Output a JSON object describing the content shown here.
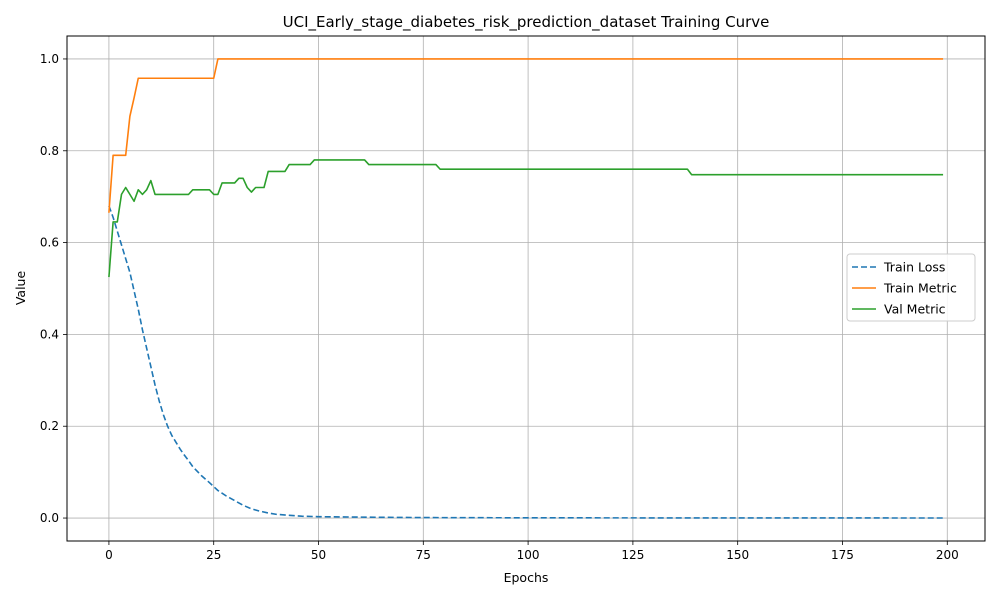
{
  "chart_data": {
    "type": "line",
    "title": "UCI_Early_stage_diabetes_risk_prediction_dataset Training Curve",
    "xlabel": "Epochs",
    "ylabel": "Value",
    "xlim": [
      -10,
      209
    ],
    "ylim": [
      -0.05,
      1.05
    ],
    "xticks": [
      0,
      25,
      50,
      75,
      100,
      125,
      150,
      175,
      200
    ],
    "yticks": [
      0.0,
      0.2,
      0.4,
      0.6,
      0.8,
      1.0
    ],
    "grid": true,
    "legend_position": "center-right",
    "series": [
      {
        "name": "Train Loss",
        "color": "#1f77b4",
        "dash": "dashed",
        "points": [
          [
            0,
            0.68
          ],
          [
            1,
            0.655
          ],
          [
            2,
            0.625
          ],
          [
            3,
            0.595
          ],
          [
            4,
            0.565
          ],
          [
            5,
            0.535
          ],
          [
            6,
            0.495
          ],
          [
            7,
            0.455
          ],
          [
            8,
            0.41
          ],
          [
            9,
            0.37
          ],
          [
            10,
            0.33
          ],
          [
            11,
            0.29
          ],
          [
            12,
            0.255
          ],
          [
            13,
            0.225
          ],
          [
            14,
            0.2
          ],
          [
            15,
            0.18
          ],
          [
            16,
            0.165
          ],
          [
            17,
            0.15
          ],
          [
            18,
            0.137
          ],
          [
            19,
            0.125
          ],
          [
            20,
            0.112
          ],
          [
            22,
            0.093
          ],
          [
            24,
            0.077
          ],
          [
            26,
            0.06
          ],
          [
            28,
            0.048
          ],
          [
            30,
            0.038
          ],
          [
            32,
            0.028
          ],
          [
            34,
            0.02
          ],
          [
            36,
            0.015
          ],
          [
            38,
            0.011
          ],
          [
            40,
            0.008
          ],
          [
            43,
            0.006
          ],
          [
            46,
            0.004
          ],
          [
            50,
            0.003
          ],
          [
            60,
            0.002
          ],
          [
            75,
            0.001
          ],
          [
            100,
            0.0005
          ],
          [
            150,
            0.0002
          ],
          [
            199,
            0.0001
          ]
        ]
      },
      {
        "name": "Train Metric",
        "color": "#ff7f0e",
        "dash": "solid",
        "points": [
          [
            0,
            0.665
          ],
          [
            1,
            0.79
          ],
          [
            2,
            0.79
          ],
          [
            3,
            0.79
          ],
          [
            4,
            0.79
          ],
          [
            5,
            0.875
          ],
          [
            6,
            0.915
          ],
          [
            7,
            0.958
          ],
          [
            8,
            0.958
          ],
          [
            15,
            0.958
          ],
          [
            20,
            0.958
          ],
          [
            25,
            0.958
          ],
          [
            26,
            1.0
          ],
          [
            50,
            1.0
          ],
          [
            100,
            1.0
          ],
          [
            150,
            1.0
          ],
          [
            199,
            1.0
          ]
        ]
      },
      {
        "name": "Val Metric",
        "color": "#2ca02c",
        "dash": "solid",
        "points": [
          [
            0,
            0.525
          ],
          [
            1,
            0.645
          ],
          [
            2,
            0.645
          ],
          [
            3,
            0.705
          ],
          [
            4,
            0.72
          ],
          [
            5,
            0.705
          ],
          [
            6,
            0.69
          ],
          [
            7,
            0.715
          ],
          [
            8,
            0.705
          ],
          [
            9,
            0.715
          ],
          [
            10,
            0.735
          ],
          [
            11,
            0.705
          ],
          [
            15,
            0.705
          ],
          [
            19,
            0.705
          ],
          [
            20,
            0.715
          ],
          [
            24,
            0.715
          ],
          [
            25,
            0.705
          ],
          [
            26,
            0.705
          ],
          [
            27,
            0.73
          ],
          [
            30,
            0.73
          ],
          [
            31,
            0.74
          ],
          [
            32,
            0.74
          ],
          [
            33,
            0.72
          ],
          [
            34,
            0.71
          ],
          [
            35,
            0.72
          ],
          [
            37,
            0.72
          ],
          [
            38,
            0.755
          ],
          [
            42,
            0.755
          ],
          [
            43,
            0.77
          ],
          [
            48,
            0.77
          ],
          [
            49,
            0.78
          ],
          [
            61,
            0.78
          ],
          [
            62,
            0.77
          ],
          [
            78,
            0.77
          ],
          [
            79,
            0.76
          ],
          [
            138,
            0.76
          ],
          [
            139,
            0.748
          ],
          [
            199,
            0.748
          ]
        ]
      }
    ]
  }
}
